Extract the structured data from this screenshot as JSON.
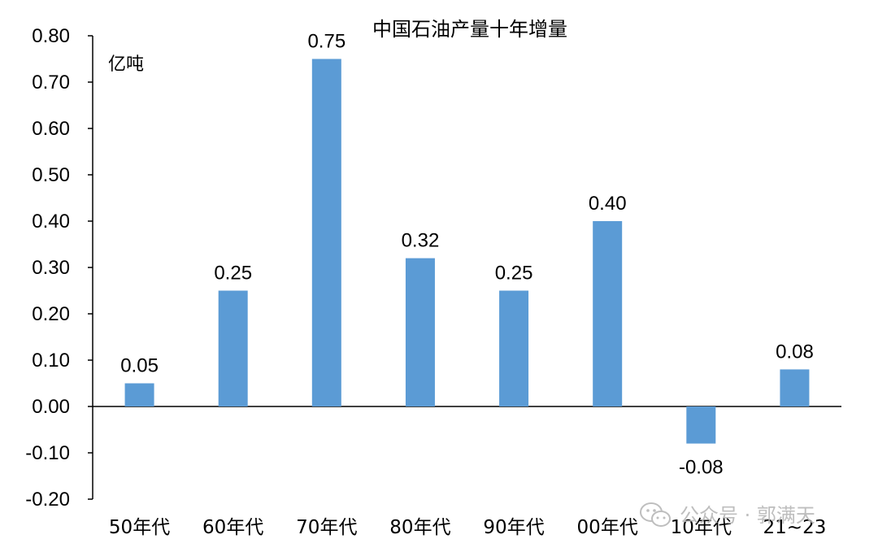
{
  "chart_data": {
    "type": "bar",
    "title": "中国石油产量十年增量",
    "unit": "亿吨",
    "categories": [
      "50年代",
      "60年代",
      "70年代",
      "80年代",
      "90年代",
      "00年代",
      "10年代",
      "21~23"
    ],
    "values": [
      0.05,
      0.25,
      0.75,
      0.32,
      0.25,
      0.4,
      -0.08,
      0.08
    ],
    "data_labels": [
      "0.05",
      "0.25",
      "0.75",
      "0.32",
      "0.25",
      "0.40",
      "-0.08",
      "0.08"
    ],
    "ylim": [
      -0.2,
      0.8
    ],
    "yticks": [
      -0.2,
      -0.1,
      0.0,
      0.1,
      0.2,
      0.3,
      0.4,
      0.5,
      0.6,
      0.7,
      0.8
    ],
    "ytick_labels": [
      "-0.20",
      "-0.10",
      "0.00",
      "0.10",
      "0.20",
      "0.30",
      "0.40",
      "0.50",
      "0.60",
      "0.70",
      "0.80"
    ],
    "xlabel": "",
    "ylabel": "",
    "grid": false,
    "legend": "none",
    "bar_color": "#5b9bd5"
  },
  "watermark": {
    "text": "公众号 · 郭满天",
    "icon": "wechat-icon",
    "color": "#b8b8b8"
  }
}
